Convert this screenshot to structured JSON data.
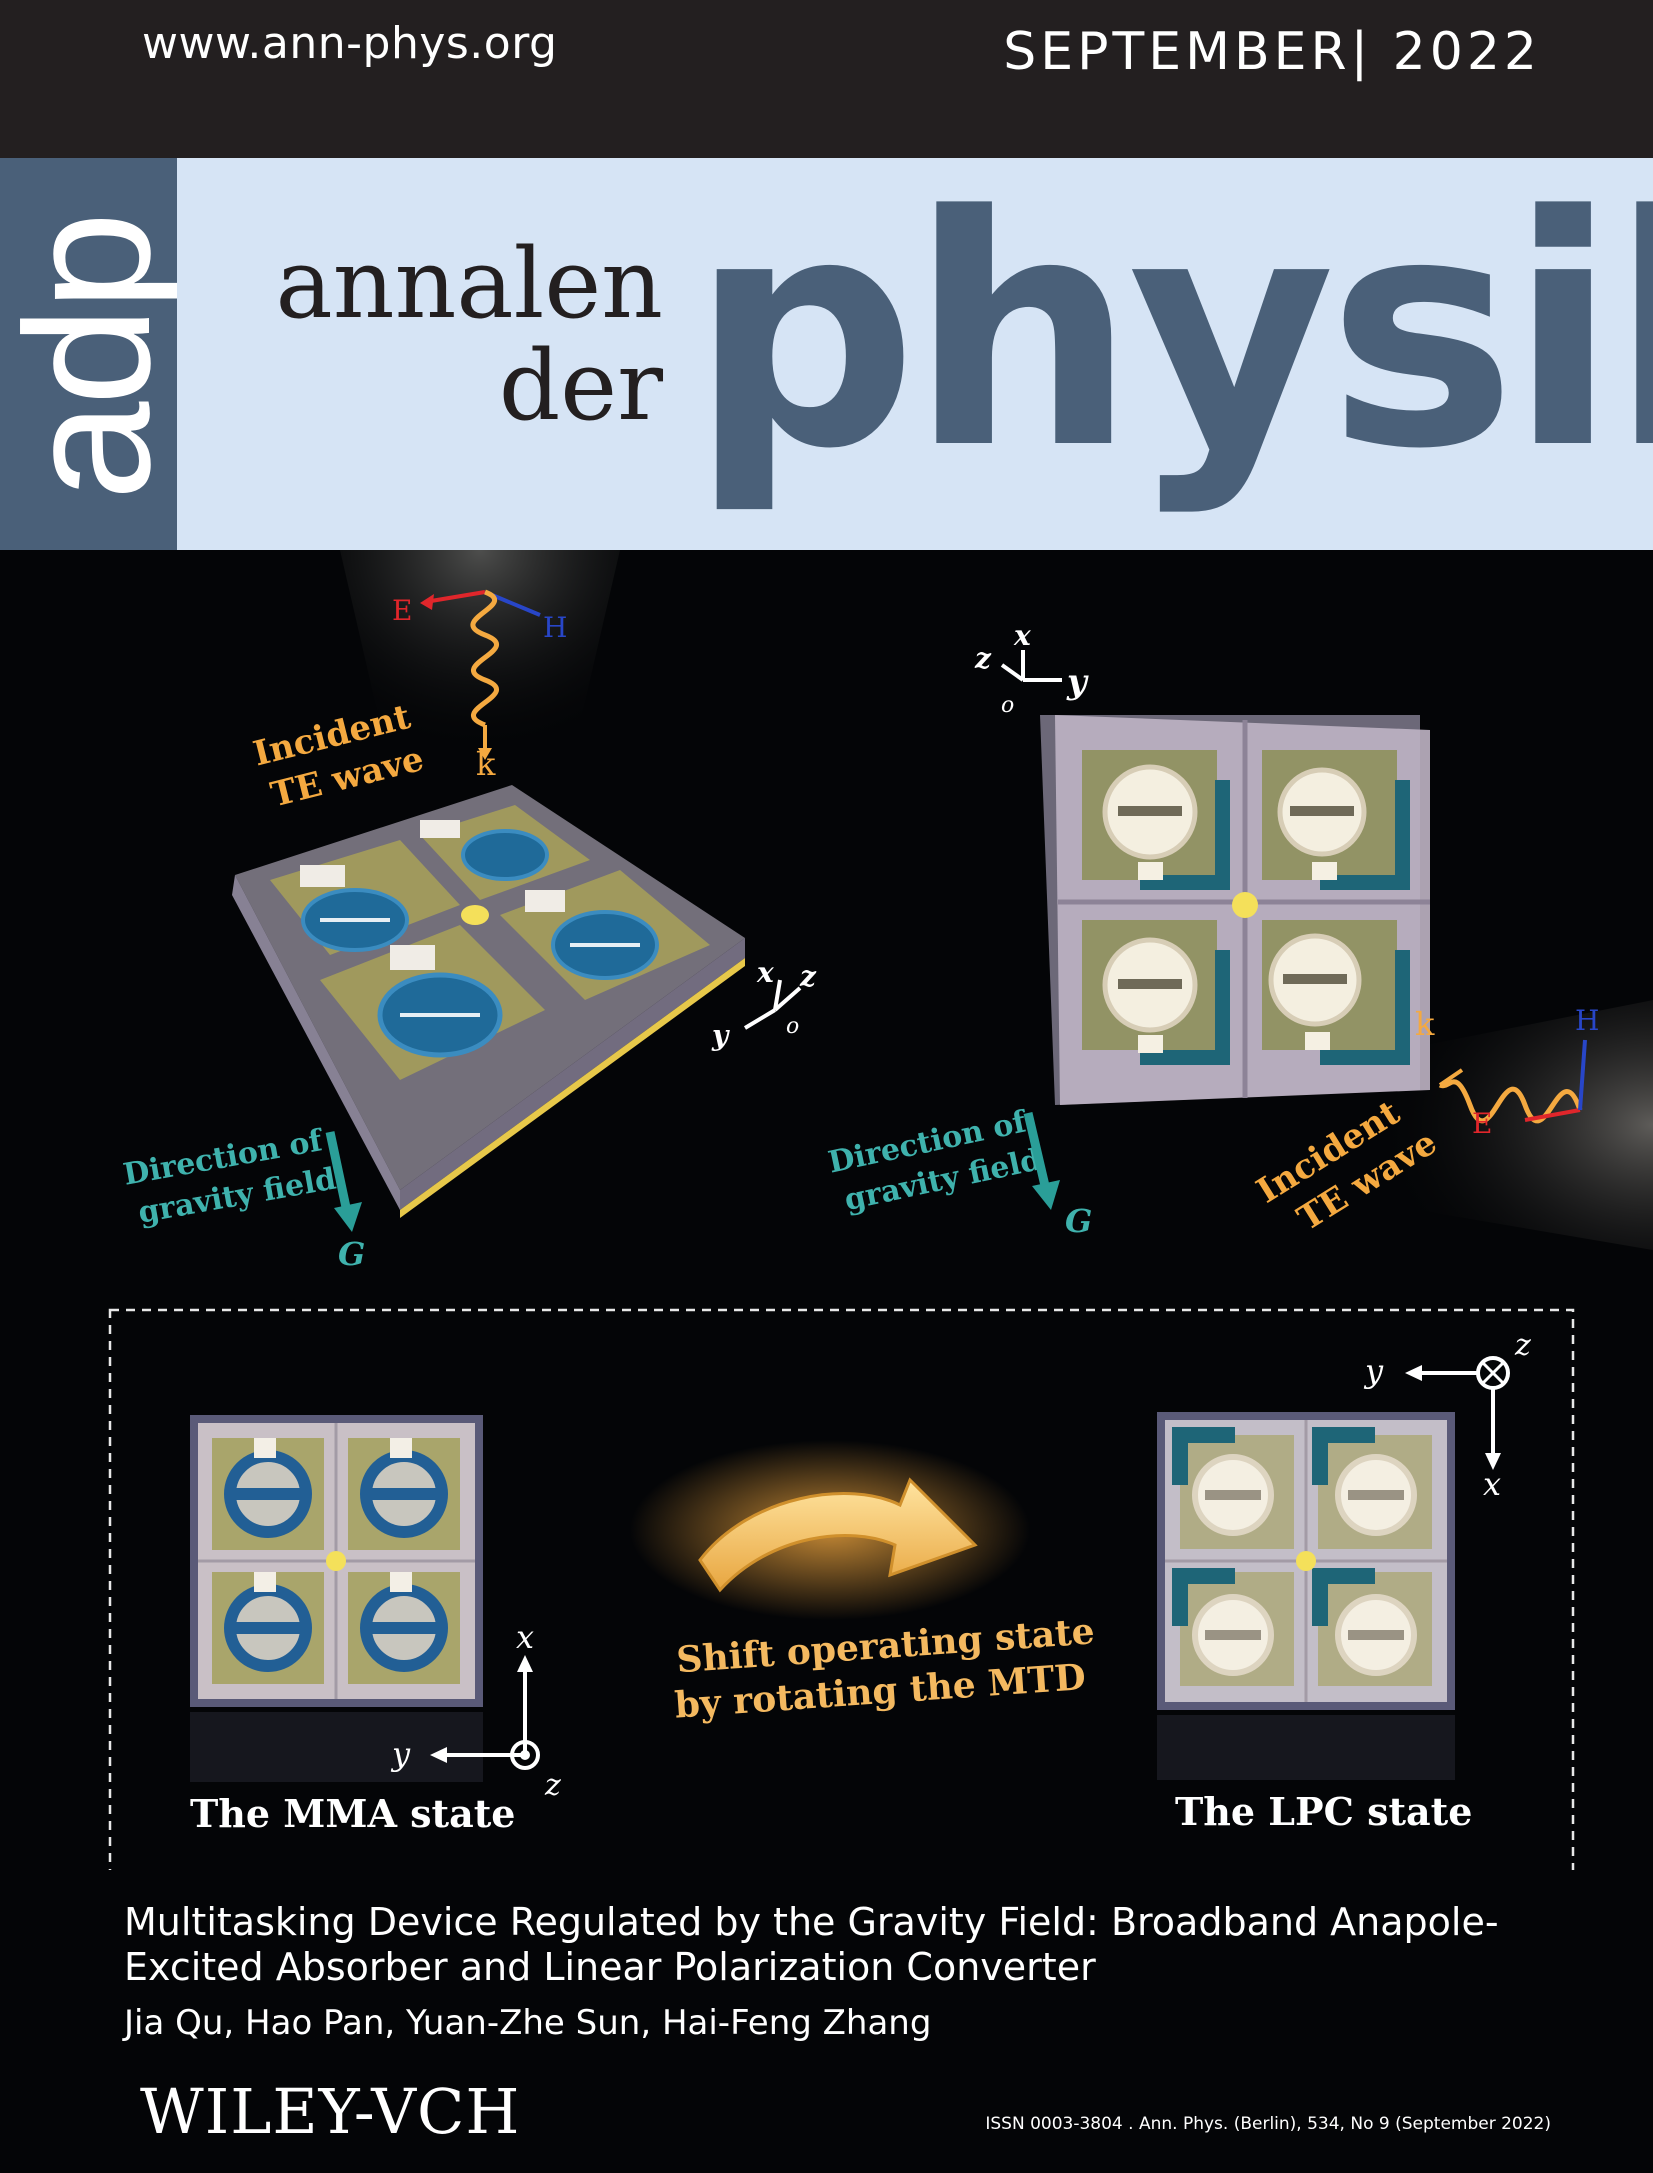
{
  "header": {
    "url": "www.ann-phys.org",
    "issue": "SEPTEMBER| 2022"
  },
  "masthead": {
    "short_logo": "adp",
    "word1": "annalen",
    "word2": "der",
    "word3": "physik",
    "accent_color": "#4a6079",
    "band_color": "#d6e4f5"
  },
  "figure": {
    "left_panel": {
      "incident_label_1": "Incident",
      "incident_label_2": "TE wave",
      "e_label": "E",
      "h_label": "H",
      "k_label": "k",
      "gravity_label_1": "Direction of",
      "gravity_label_2": "gravity field",
      "g_label": "G",
      "axis_x": "x",
      "axis_y": "y",
      "axis_z": "z",
      "axis_o": "o"
    },
    "right_panel": {
      "incident_label_1": "Incident",
      "incident_label_2": "TE wave",
      "e_label": "E",
      "h_label": "H",
      "k_label": "k",
      "gravity_label_1": "Direction of",
      "gravity_label_2": "gravity field",
      "g_label": "G",
      "axis_x": "x",
      "axis_y": "y",
      "axis_z": "z",
      "axis_o": "o"
    },
    "inset": {
      "mma_state": "The MMA state",
      "lpc_state": "The LPC state",
      "shift_line_1": "Shift operating state",
      "shift_line_2": "by rotating the MTD",
      "mma_axis_x": "x",
      "mma_axis_y": "y",
      "mma_axis_z": "z",
      "lpc_axis_x": "x",
      "lpc_axis_y": "y",
      "lpc_axis_z": "z"
    }
  },
  "article": {
    "title": "Multitasking Device Regulated by the Gravity Field: Broadband Anapole-Excited Absorber and Linear Polarization Converter",
    "authors": "Jia Qu, Hao Pan, Yuan-Zhe Sun, Hai-Feng Zhang"
  },
  "footer": {
    "publisher": "WILEY-VCH",
    "issn": "ISSN 0003-3804 . Ann. Phys. (Berlin), 534, No 9 (September 2022)"
  }
}
